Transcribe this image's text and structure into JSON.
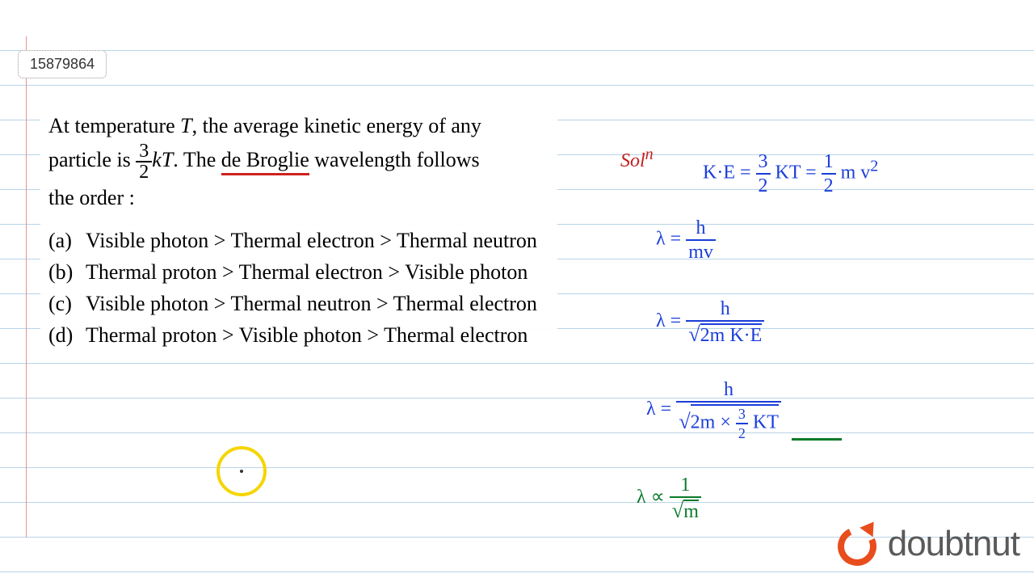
{
  "id_number": "15879864",
  "question": {
    "line1_a": "At temperature ",
    "line1_T": "T",
    "line1_b": ", the average kinetic energy of any",
    "line2_a": "particle is ",
    "frac_num": "3",
    "frac_den": "2",
    "line2_kT": "kT",
    "line2_b": ". The ",
    "line2_underlined": "de Broglie",
    "line2_c": " wavelength follows",
    "line3": "the order :"
  },
  "options": {
    "a_label": "(a)",
    "a_text": "Visible photon > Thermal electron > Thermal neutron",
    "b_label": "(b)",
    "b_text": "Thermal proton > Thermal electron > Visible photon",
    "c_label": "(c)",
    "c_text": "Visible photon > Thermal neutron > Thermal electron",
    "d_label": "(d)",
    "d_text": "Thermal proton > Visible photon  > Thermal electron"
  },
  "handwriting": {
    "sol": "Sol",
    "sol_sup": "n",
    "ke_lhs": "K·E = ",
    "ke_frac_num": "3",
    "ke_frac_den": "2",
    "ke_mid": " KT  = ",
    "ke_frac2_num": "1",
    "ke_frac2_den": "2",
    "ke_rhs": " m v",
    "ke_sup": "2",
    "lambda": "λ",
    "eq": " = ",
    "l1_num": "h",
    "l1_den": "mv",
    "l2_num": "h",
    "l2_den_sqrt": "2m K·E",
    "l3_num": "h",
    "l3_den_a": "2m × ",
    "l3_den_frac_num": "3",
    "l3_den_frac_den": "2",
    "l3_den_b": " KT",
    "prop": " ∝ ",
    "l4_num": "1",
    "l4_den_sqrt": "m"
  },
  "logo": {
    "text": "doubtnut"
  },
  "colors": {
    "red_ink": "#c41e1e",
    "blue_ink": "#1a3ed8",
    "green_ink": "#0a7a2a",
    "logo_orange": "#e84d1c",
    "logo_gray": "#5a5a5a",
    "rule_line": "#b8d4e8",
    "margin_line": "#e89090",
    "yellow_circle": "#f5d500"
  }
}
